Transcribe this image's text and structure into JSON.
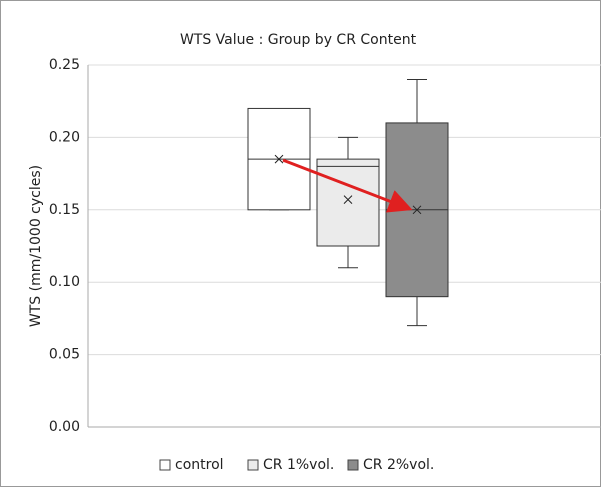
{
  "chart_data": {
    "type": "box",
    "title": "WTS Value : Group by CR Content",
    "y_label": "WTS (mm/1000 cycles)",
    "ylim": [
      0,
      0.25
    ],
    "yticks": [
      {
        "value": 0,
        "label": "0.00"
      },
      0.05,
      {
        "value": 0.1,
        "label": "0.10"
      },
      0.15,
      {
        "value": 0.2,
        "label": "0.20"
      },
      0.25
    ],
    "grid": true,
    "legend": "bottom",
    "series": [
      {
        "name": "control",
        "color": "#ffffff",
        "min": 0.15,
        "q1": 0.15,
        "median": 0.185,
        "q3": 0.22,
        "max": 0.22,
        "mean": 0.185
      },
      {
        "name": "CR 1%vol.",
        "color": "#ebebeb",
        "min": 0.11,
        "q1": 0.125,
        "median": 0.18,
        "q3": 0.185,
        "max": 0.2,
        "mean": 0.157
      },
      {
        "name": "CR 2%vol.",
        "color": "#8c8c8c",
        "min": 0.07,
        "q1": 0.09,
        "median": 0.15,
        "q3": 0.21,
        "max": 0.24,
        "mean": 0.15
      }
    ]
  }
}
